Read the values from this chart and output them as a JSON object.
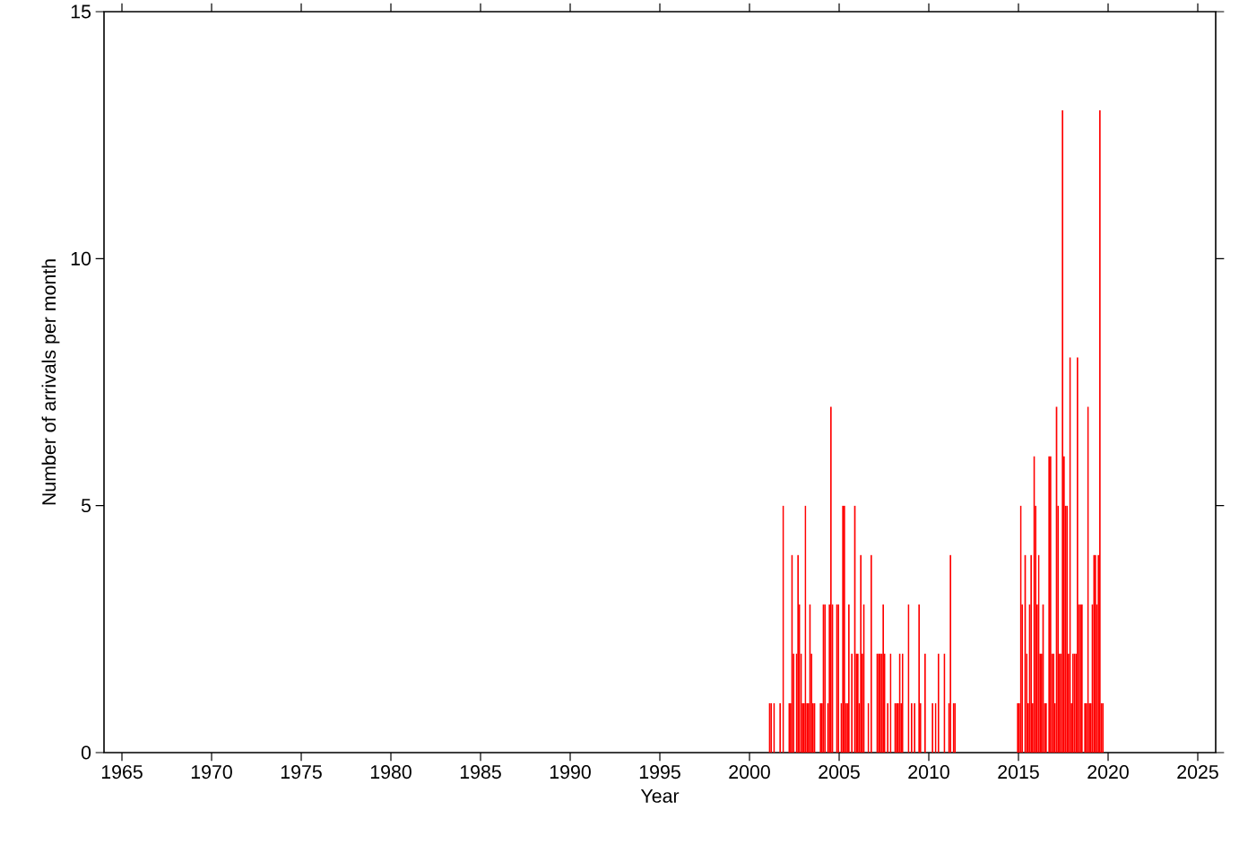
{
  "chart_data": {
    "type": "histogram",
    "xlabel": "Year",
    "ylabel": "Number of arrivals per month",
    "color": "#ff0000",
    "xlim": [
      1964,
      2026
    ],
    "ylim": [
      0,
      15
    ],
    "xticks": [
      1965,
      1970,
      1975,
      1980,
      1985,
      1990,
      1995,
      2000,
      2005,
      2010,
      2015,
      2020,
      2025
    ],
    "yticks": [
      0,
      5,
      10,
      15
    ],
    "bins": [
      2001.0,
      2001.083,
      2001.167,
      2001.25,
      2001.333,
      2001.417,
      2001.5,
      2001.583,
      2001.667,
      2001.75,
      2001.833,
      2001.917,
      2002.0,
      2002.083,
      2002.167,
      2002.25,
      2002.333,
      2002.417,
      2002.5,
      2002.583,
      2002.667,
      2002.75,
      2002.833,
      2002.917,
      2003.0,
      2003.083,
      2003.167,
      2003.25,
      2003.333,
      2003.417,
      2003.5,
      2003.583,
      2003.667,
      2003.75,
      2003.833,
      2003.917,
      2004.0,
      2004.083,
      2004.167,
      2004.25,
      2004.333,
      2004.417,
      2004.5,
      2004.583,
      2004.667,
      2004.75,
      2004.833,
      2004.917,
      2005.0,
      2005.083,
      2005.167,
      2005.25,
      2005.333,
      2005.417,
      2005.5,
      2005.583,
      2005.667,
      2005.75,
      2005.833,
      2005.917,
      2006.0,
      2006.083,
      2006.167,
      2006.25,
      2006.333,
      2006.417,
      2006.5,
      2006.583,
      2006.667,
      2006.75,
      2006.833,
      2006.917,
      2007.0,
      2007.083,
      2007.167,
      2007.25,
      2007.333,
      2007.417,
      2007.5,
      2007.583,
      2007.667,
      2007.75,
      2007.833,
      2007.917,
      2008.0,
      2008.083,
      2008.167,
      2008.25,
      2008.333,
      2008.417,
      2008.5,
      2008.583,
      2008.667,
      2008.75,
      2008.833,
      2008.917,
      2009.0,
      2009.083,
      2009.167,
      2009.25,
      2009.333,
      2009.417,
      2009.5,
      2009.583,
      2009.667,
      2009.75,
      2009.833,
      2009.917,
      2010.0,
      2010.083,
      2010.167,
      2010.25,
      2010.333,
      2010.417,
      2010.5,
      2010.583,
      2010.667,
      2010.75,
      2010.833,
      2010.917,
      2011.0,
      2011.083,
      2011.167,
      2011.25,
      2011.333,
      2011.417,
      2011.5,
      2011.583,
      2011.667,
      2011.75,
      2011.833,
      2011.917,
      2012.0,
      2012.083,
      2012.167,
      2012.25,
      2012.333,
      2012.417,
      2012.5,
      2012.583,
      2012.667,
      2012.75,
      2012.833,
      2012.917,
      2013.0,
      2013.083,
      2013.167,
      2013.25,
      2013.333,
      2013.417,
      2013.5,
      2013.583,
      2013.667,
      2013.75,
      2013.833,
      2013.917,
      2014.0,
      2014.083,
      2014.167,
      2014.25,
      2014.333,
      2014.417,
      2014.5,
      2014.583,
      2014.667,
      2014.75,
      2014.833,
      2014.917,
      2015.0,
      2015.083,
      2015.167,
      2015.25,
      2015.333,
      2015.417,
      2015.5,
      2015.583,
      2015.667,
      2015.75,
      2015.833,
      2015.917,
      2016.0,
      2016.083,
      2016.167,
      2016.25,
      2016.333,
      2016.417,
      2016.5,
      2016.583,
      2016.667,
      2016.75,
      2016.833,
      2016.917,
      2017.0,
      2017.083,
      2017.167,
      2017.25,
      2017.333,
      2017.417,
      2017.5,
      2017.583,
      2017.667,
      2017.75,
      2017.833,
      2017.917,
      2018.0,
      2018.083,
      2018.167,
      2018.25,
      2018.333,
      2018.417,
      2018.5,
      2018.583,
      2018.667,
      2018.75,
      2018.833,
      2018.917,
      2019.0,
      2019.083,
      2019.167,
      2019.25,
      2019.333,
      2019.417,
      2019.5,
      2019.583,
      2019.667,
      2019.75
    ],
    "values": [
      0,
      1,
      1,
      0,
      1,
      0,
      0,
      0,
      1,
      0,
      5,
      0,
      0,
      0,
      1,
      1,
      4,
      2,
      0,
      2,
      4,
      3,
      2,
      1,
      1,
      5,
      1,
      1,
      3,
      2,
      1,
      1,
      0,
      0,
      0,
      1,
      1,
      3,
      3,
      0,
      1,
      3,
      7,
      3,
      0,
      0,
      3,
      3,
      0,
      1,
      5,
      5,
      1,
      1,
      3,
      0,
      2,
      0,
      5,
      2,
      2,
      1,
      4,
      2,
      3,
      0,
      0,
      1,
      0,
      4,
      0,
      0,
      0,
      2,
      2,
      2,
      2,
      3,
      2,
      0,
      1,
      0,
      2,
      0,
      0,
      1,
      1,
      1,
      2,
      1,
      2,
      0,
      0,
      0,
      3,
      0,
      1,
      0,
      1,
      0,
      0,
      3,
      1,
      0,
      0,
      2,
      0,
      0,
      0,
      0,
      1,
      0,
      1,
      0,
      2,
      0,
      0,
      0,
      2,
      0,
      0,
      1,
      4,
      0,
      1,
      1,
      0,
      0,
      0,
      0,
      0,
      0,
      0,
      0,
      0,
      0,
      0,
      0,
      0,
      0,
      0,
      0,
      0,
      0,
      0,
      0,
      0,
      0,
      0,
      0,
      0,
      0,
      0,
      0,
      0,
      0,
      0,
      0,
      0,
      0,
      0,
      0,
      0,
      0,
      0,
      0,
      0,
      1,
      1,
      5,
      3,
      0,
      4,
      2,
      1,
      3,
      4,
      1,
      6,
      5,
      3,
      4,
      2,
      2,
      3,
      1,
      1,
      0,
      6,
      6,
      2,
      2,
      1,
      7,
      5,
      2,
      2,
      13,
      6,
      5,
      5,
      2,
      8,
      1,
      2,
      2,
      2,
      8,
      3,
      3,
      3,
      0,
      1,
      1,
      7,
      1,
      1,
      3,
      4,
      4,
      3,
      4,
      13,
      1,
      1
    ]
  }
}
